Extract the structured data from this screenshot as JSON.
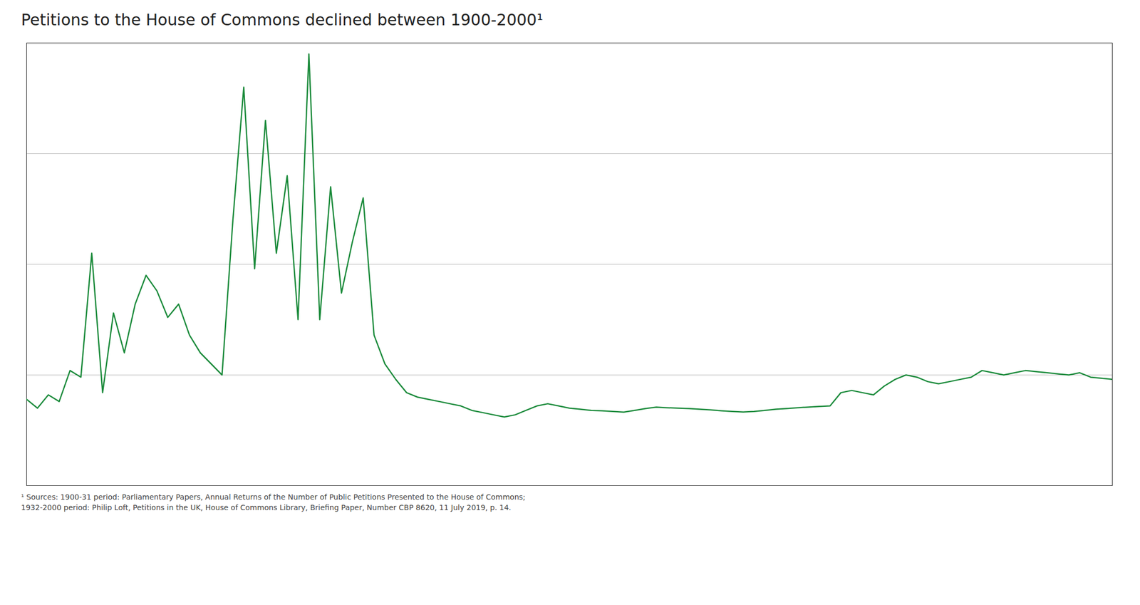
{
  "chart_data": {
    "type": "line",
    "title": "Petitions to the House of Commons declined between 1900-2000¹",
    "x": [
      1900,
      1901,
      1902,
      1903,
      1904,
      1905,
      1906,
      1907,
      1908,
      1909,
      1910,
      1911,
      1912,
      1913,
      1914,
      1915,
      1916,
      1917,
      1918,
      1919,
      1920,
      1921,
      1922,
      1923,
      1924,
      1925,
      1926,
      1927,
      1928,
      1929,
      1930,
      1931,
      1932,
      1933,
      1934,
      1935,
      1936,
      1937,
      1938,
      1939,
      1940,
      1941,
      1942,
      1943,
      1944,
      1945,
      1946,
      1947,
      1948,
      1949,
      1950,
      1951,
      1952,
      1953,
      1954,
      1955,
      1956,
      1957,
      1958,
      1959,
      1960,
      1961,
      1962,
      1963,
      1964,
      1965,
      1966,
      1967,
      1968,
      1969,
      1970,
      1971,
      1972,
      1973,
      1974,
      1975,
      1976,
      1977,
      1978,
      1979,
      1980,
      1981,
      1982,
      1983,
      1984,
      1985,
      1986,
      1987,
      1988,
      1989,
      1990,
      1991,
      1992,
      1993,
      1994,
      1995,
      1996,
      1997,
      1998,
      1999,
      2000
    ],
    "values": [
      390,
      350,
      410,
      380,
      520,
      490,
      1050,
      420,
      780,
      600,
      820,
      950,
      880,
      760,
      820,
      680,
      600,
      550,
      500,
      1200,
      1800,
      980,
      1650,
      1050,
      1400,
      750,
      1950,
      750,
      1350,
      870,
      1100,
      1300,
      680,
      550,
      480,
      420,
      400,
      390,
      380,
      370,
      360,
      340,
      330,
      320,
      310,
      320,
      340,
      360,
      370,
      360,
      350,
      345,
      340,
      338,
      335,
      332,
      340,
      348,
      355,
      352,
      350,
      348,
      345,
      342,
      338,
      335,
      333,
      335,
      340,
      345,
      348,
      352,
      355,
      358,
      360,
      420,
      430,
      420,
      410,
      450,
      480,
      500,
      490,
      470,
      460,
      470,
      480,
      490,
      520,
      510,
      500,
      510,
      520,
      515,
      510,
      505,
      500,
      510,
      490,
      485,
      480
    ],
    "color": "#1a8a3a",
    "xlim": [
      1900,
      2000
    ],
    "ylim": [
      0,
      2000
    ],
    "yticks": [
      0,
      500,
      1000,
      1500,
      2000
    ],
    "grid": "y",
    "tick_labels": false,
    "annotations": [
      "¹ Sources: 1900-31 period: Parliamentary Papers, Annual Returns of the Number of Public Petitions Presented to the House of Commons;",
      "1932-2000 period: Philip Loft, Petitions in the UK, House of Commons Library, Briefing Paper, Number CBP 8620, 11 July 2019, p. 14."
    ]
  }
}
